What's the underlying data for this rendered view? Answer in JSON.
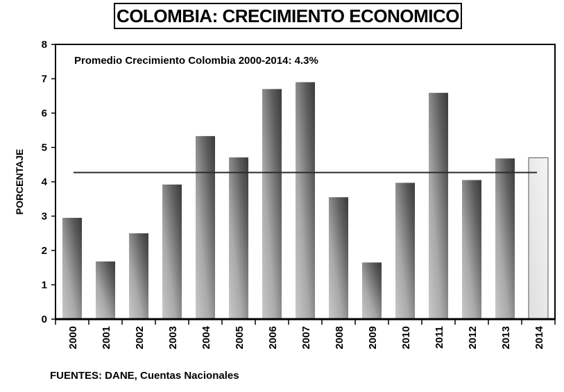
{
  "chart_data": {
    "type": "bar",
    "title": "COLOMBIA: CRECIMIENTO ECONOMICO",
    "ylabel": "PORCENTAJE",
    "xlabel": "",
    "ylim": [
      0,
      8
    ],
    "yticks": [
      0,
      1,
      2,
      3,
      4,
      5,
      6,
      7,
      8
    ],
    "categories": [
      "2000",
      "2001",
      "2002",
      "2003",
      "2004",
      "2005",
      "2006",
      "2007",
      "2008",
      "2009",
      "2010",
      "2011",
      "2012",
      "2013",
      "2014"
    ],
    "values": [
      2.95,
      1.68,
      2.5,
      3.92,
      5.33,
      4.71,
      6.7,
      6.9,
      3.55,
      1.65,
      3.97,
      6.59,
      4.05,
      4.68,
      4.7
    ],
    "highlight_category": "2014",
    "average_line": {
      "value": 4.27
    },
    "annotation": "Promedio Crecimiento Colombia 2000-2014:  4.3%",
    "source": "FUENTES: DANE, Cuentas Nacionales"
  }
}
